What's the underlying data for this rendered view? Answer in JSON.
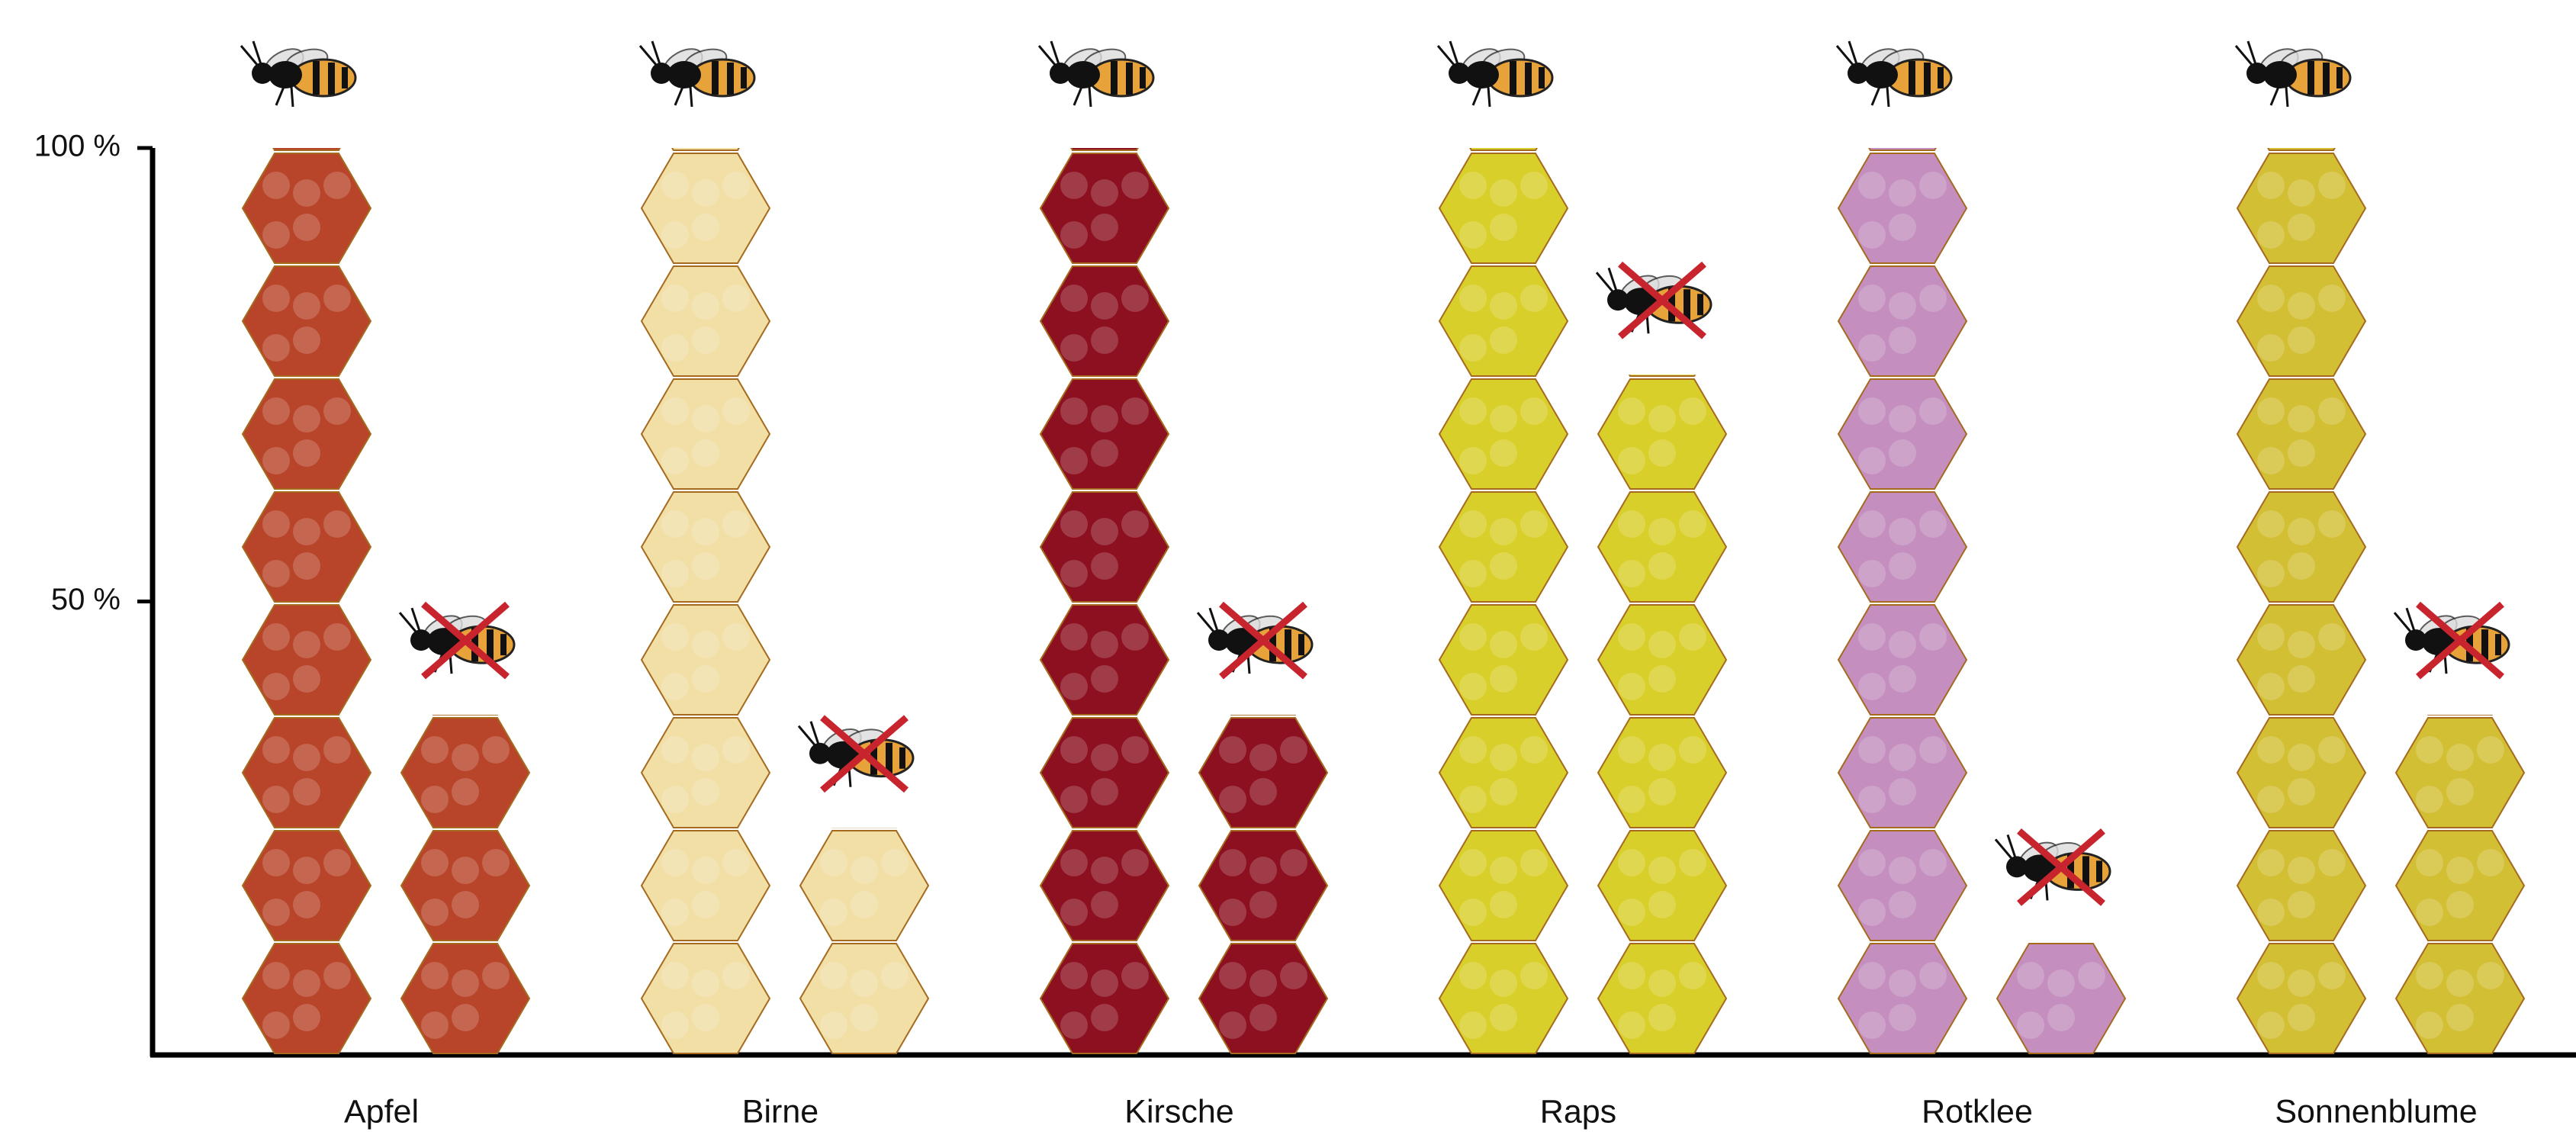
{
  "chart_data": {
    "type": "pictogram-bar",
    "categories": [
      "Apfel",
      "Birne",
      "Kirsche",
      "Raps",
      "Rotklee",
      "Sonnenblume"
    ],
    "colors": [
      "#b8452a",
      "#f1dfa6",
      "#8c1020",
      "#d9cf2a",
      "#c48fbf",
      "#d2bf34"
    ],
    "series": [
      {
        "values": [
          100,
          100,
          100,
          100,
          100,
          100
        ]
      },
      {
        "values": [
          37.5,
          25,
          37.5,
          75,
          12.5,
          37.5
        ]
      }
    ],
    "ylim": [
      0,
      100
    ],
    "yticks": [
      {
        "value": 50,
        "label": "50 %"
      },
      {
        "value": 100,
        "label": "100 %"
      }
    ]
  }
}
